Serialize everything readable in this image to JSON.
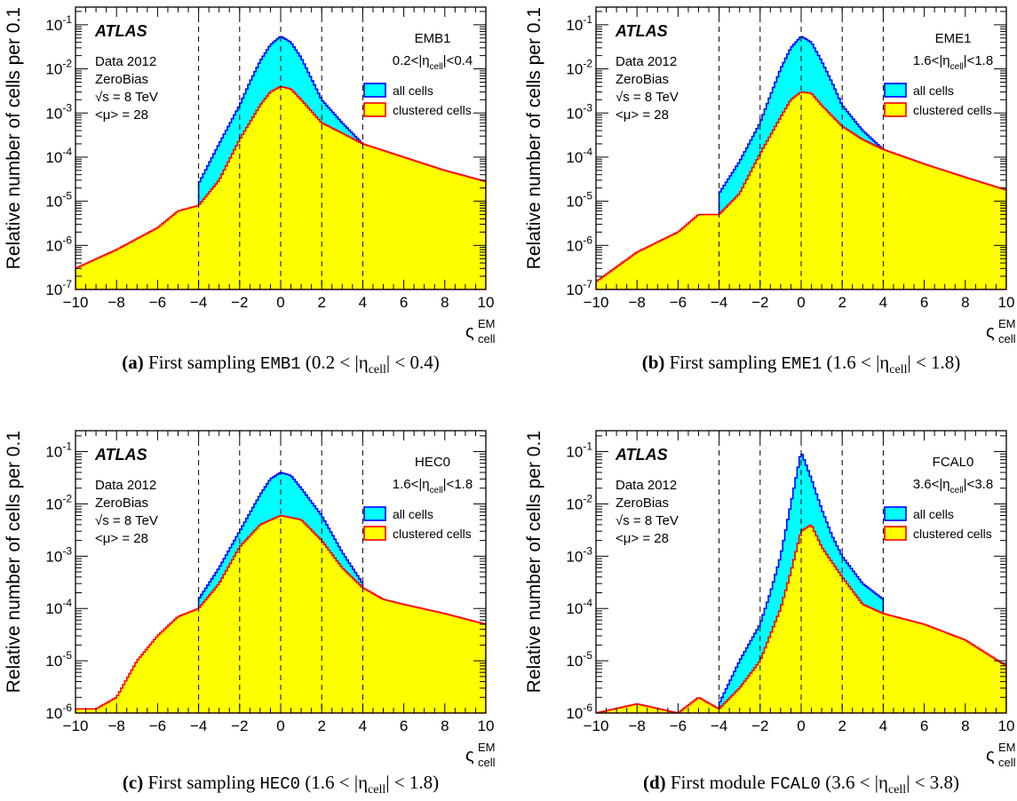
{
  "figure": {
    "ylabel": "Relative number of cells per 0.1",
    "xlabel_main": "ς",
    "xlabel_sup": "EM",
    "xlabel_sub": "cell",
    "atlas": "ATLAS",
    "info": [
      "Data 2012",
      "ZeroBias",
      "√s = 8 TeV",
      "<μ> = 28"
    ],
    "legend": [
      {
        "label": "all cells",
        "color": "#00ffff",
        "edge": "#0000ff"
      },
      {
        "label": "clustered cells",
        "color": "#ffff00",
        "edge": "#ff0000"
      }
    ],
    "vlines": [
      -4,
      -2,
      0,
      2,
      4
    ]
  },
  "chart_data": [
    {
      "type": "area",
      "panel": "a",
      "caption_label": "(a)",
      "caption_text": "First sampling",
      "caption_code": "EMB1",
      "caption_range": "(0.2 < |η",
      "caption_sub": "cell",
      "caption_end": "| < 0.4)",
      "region": "EMB1",
      "eta_range": "0.2<|η",
      "eta_sub": "cell",
      "eta_end": "|<0.4",
      "xlim": [
        -10,
        10
      ],
      "ylim_exp": [
        -7,
        -0.6
      ],
      "xticks": [
        -10,
        -8,
        -6,
        -4,
        -2,
        0,
        2,
        4,
        6,
        8,
        10
      ],
      "yticks": [
        "10",
        "10",
        "10",
        "10",
        "10",
        "10",
        "10"
      ],
      "ytick_exp": [
        "-7",
        "-6",
        "-5",
        "-4",
        "-3",
        "-2",
        "-1"
      ],
      "series": [
        {
          "name": "all cells",
          "x": [
            -4,
            -3,
            -2,
            -1.5,
            -1,
            -0.5,
            0,
            0.5,
            1,
            1.5,
            2,
            3,
            4
          ],
          "y": [
            2.5e-05,
            0.0002,
            0.0015,
            0.005,
            0.015,
            0.035,
            0.055,
            0.04,
            0.018,
            0.006,
            0.002,
            0.0006,
            0.0002
          ]
        },
        {
          "name": "clustered cells",
          "x": [
            -10,
            -8,
            -6,
            -5,
            -4,
            -3,
            -2,
            -1,
            -0.5,
            0,
            0.5,
            1,
            2,
            3,
            4,
            6,
            8,
            10
          ],
          "y": [
            3e-07,
            8e-07,
            2.5e-06,
            6e-06,
            8e-06,
            3e-05,
            0.00025,
            0.0015,
            0.003,
            0.004,
            0.0035,
            0.002,
            0.0006,
            0.00035,
            0.0002,
            0.0001,
            5e-05,
            2.8e-05
          ]
        }
      ]
    },
    {
      "type": "area",
      "panel": "b",
      "caption_label": "(b)",
      "caption_text": "First sampling",
      "caption_code": "EME1",
      "caption_range": "(1.6 < |η",
      "caption_sub": "cell",
      "caption_end": "| < 1.8)",
      "region": "EME1",
      "eta_range": "1.6<|η",
      "eta_sub": "cell",
      "eta_end": "|<1.8",
      "xlim": [
        -10,
        10
      ],
      "ylim_exp": [
        -7,
        -0.6
      ],
      "xticks": [
        -10,
        -8,
        -6,
        -4,
        -2,
        0,
        2,
        4,
        6,
        8,
        10
      ],
      "yticks": [
        "10",
        "10",
        "10",
        "10",
        "10",
        "10",
        "10"
      ],
      "ytick_exp": [
        "-7",
        "-6",
        "-5",
        "-4",
        "-3",
        "-2",
        "-1"
      ],
      "series": [
        {
          "name": "all cells",
          "x": [
            -4,
            -3,
            -2,
            -1.5,
            -1,
            -0.5,
            0,
            0.5,
            1,
            1.5,
            2,
            3,
            4
          ],
          "y": [
            1.5e-05,
            8e-05,
            0.0006,
            0.0025,
            0.01,
            0.03,
            0.055,
            0.04,
            0.015,
            0.005,
            0.0015,
            0.0004,
            0.00015
          ]
        },
        {
          "name": "clustered cells",
          "x": [
            -10,
            -8,
            -6,
            -5,
            -4,
            -3,
            -2,
            -1,
            -0.5,
            0,
            0.5,
            1,
            2,
            3,
            4,
            6,
            8,
            10
          ],
          "y": [
            1.5e-07,
            7e-07,
            2e-06,
            5e-06,
            5e-06,
            1.5e-05,
            0.00012,
            0.0008,
            0.002,
            0.003,
            0.0028,
            0.0015,
            0.0005,
            0.00025,
            0.00015,
            7e-05,
            3.5e-05,
            1.8e-05
          ]
        }
      ]
    },
    {
      "type": "area",
      "panel": "c",
      "caption_label": "(c)",
      "caption_text": "First sampling",
      "caption_code": "HEC0",
      "caption_range": "(1.6 < |η",
      "caption_sub": "cell",
      "caption_end": "| < 1.8)",
      "region": "HEC0",
      "eta_range": "1.6<|η",
      "eta_sub": "cell",
      "eta_end": "|<1.8",
      "xlim": [
        -10,
        10
      ],
      "ylim_exp": [
        -6,
        -0.6
      ],
      "xticks": [
        -10,
        -8,
        -6,
        -4,
        -2,
        0,
        2,
        4,
        6,
        8,
        10
      ],
      "yticks": [
        "10",
        "10",
        "10",
        "10",
        "10",
        "10"
      ],
      "ytick_exp": [
        "-6",
        "-5",
        "-4",
        "-3",
        "-2",
        "-1"
      ],
      "series": [
        {
          "name": "all cells",
          "x": [
            -4,
            -3,
            -2,
            -1,
            -0.5,
            0,
            0.5,
            1,
            2,
            3,
            4
          ],
          "y": [
            0.00015,
            0.0006,
            0.003,
            0.015,
            0.03,
            0.04,
            0.035,
            0.02,
            0.006,
            0.0012,
            0.0003
          ]
        },
        {
          "name": "clustered cells",
          "x": [
            -9,
            -8,
            -7,
            -6,
            -5,
            -4,
            -3,
            -2,
            -1,
            0,
            1,
            2,
            3,
            4,
            5,
            6,
            8,
            10
          ],
          "y": [
            1.2e-06,
            2e-06,
            1e-05,
            3e-05,
            7e-05,
            0.0001,
            0.0003,
            0.0015,
            0.004,
            0.006,
            0.005,
            0.002,
            0.0006,
            0.00025,
            0.00015,
            0.00012,
            8e-05,
            5e-05
          ]
        }
      ]
    },
    {
      "type": "area",
      "panel": "d",
      "caption_label": "(d)",
      "caption_text": "First module",
      "caption_code": "FCAL0",
      "caption_range": "(3.6 < |η",
      "caption_sub": "cell",
      "caption_end": "| < 3.8)",
      "region": "FCAL0",
      "eta_range": "3.6<|η",
      "eta_sub": "cell",
      "eta_end": "|<3.8",
      "xlim": [
        -10,
        10
      ],
      "ylim_exp": [
        -6,
        -0.6
      ],
      "xticks": [
        -10,
        -8,
        -6,
        -4,
        -2,
        0,
        2,
        4,
        6,
        8,
        10
      ],
      "yticks": [
        "10",
        "10",
        "10",
        "10",
        "10",
        "10"
      ],
      "ytick_exp": [
        "-6",
        "-5",
        "-4",
        "-3",
        "-2",
        "-1"
      ],
      "series": [
        {
          "name": "all cells",
          "x": [
            -4,
            -3,
            -2,
            -1.5,
            -1,
            -0.5,
            0,
            0.5,
            1,
            1.5,
            2,
            3,
            4
          ],
          "y": [
            1.5e-06,
            1e-05,
            5e-05,
            0.0002,
            0.001,
            0.01,
            0.1,
            0.03,
            0.008,
            0.0025,
            0.001,
            0.0003,
            0.00015
          ]
        },
        {
          "name": "clustered cells",
          "x": [
            -10,
            -8,
            -6,
            -5,
            -4,
            -3,
            -2,
            -1,
            -0.5,
            0,
            0.5,
            1,
            2,
            3,
            4,
            6,
            8,
            10
          ],
          "y": [
            1e-06,
            1.5e-06,
            1e-06,
            2e-06,
            1.2e-06,
            3e-06,
            1e-05,
            0.0001,
            0.0005,
            0.003,
            0.004,
            0.0015,
            0.0004,
            0.00012,
            8e-05,
            5e-05,
            2.5e-05,
            8e-06
          ]
        }
      ]
    }
  ]
}
